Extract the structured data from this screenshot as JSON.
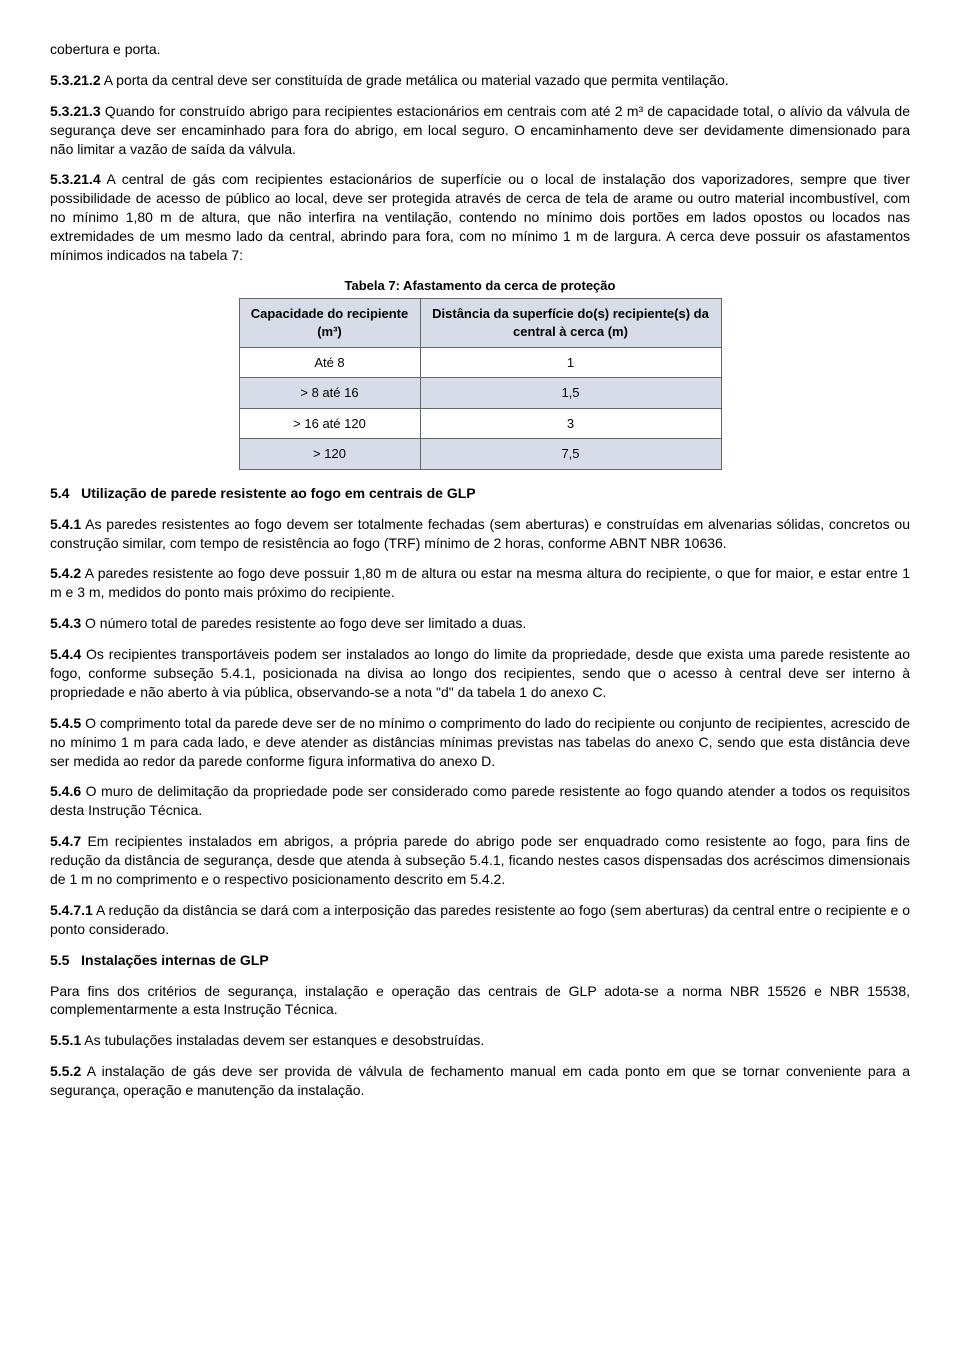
{
  "p_intro": "cobertura e porta.",
  "p_53212": {
    "num": "5.3.21.2",
    "text": " A porta da central deve ser constituída de grade metálica ou material vazado que permita ventilação."
  },
  "p_53213": {
    "num": "5.3.21.3",
    "text": " Quando for construído abrigo para recipientes estacionários em centrais com até 2 m³ de capacidade total, o alívio da válvula de segurança deve ser encaminhado para fora do abrigo, em local seguro. O encaminhamento deve ser devidamente dimensionado para não limitar a vazão de saída da válvula."
  },
  "p_53214": {
    "num": "5.3.21.4",
    "text": " A central de gás com recipientes estacionários de superfície ou o local de instalação dos vaporizadores, sempre que tiver possibilidade de acesso de público ao local, deve ser protegida através de cerca de tela de arame ou outro material incombustível, com no mínimo 1,80 m de altura, que não interfira na ventilação, contendo no mínimo dois portões em lados opostos ou locados nas extremidades de um mesmo lado da central, abrindo para fora, com no mínimo 1 m de largura. A cerca deve possuir os afastamentos mínimos indicados na tabela 7:"
  },
  "table7": {
    "caption": "Tabela 7: Afastamento da cerca de proteção",
    "headers": [
      "Capacidade do recipiente (m³)",
      "Distância da superfície do(s) recipiente(s) da central à cerca (m)"
    ],
    "rows": [
      [
        "Até 8",
        "1"
      ],
      [
        "> 8 até 16",
        "1,5"
      ],
      [
        "> 16 até 120",
        "3"
      ],
      [
        "> 120",
        "7,5"
      ]
    ]
  },
  "sec54": {
    "num": "5.4",
    "title": "Utilização de parede resistente ao fogo em centrais de GLP"
  },
  "p_541": {
    "num": "5.4.1",
    "text": " As paredes resistentes ao fogo devem ser totalmente fechadas (sem aberturas) e construídas em alvenarias sólidas, concretos ou construção similar, com tempo de resistência ao fogo (TRF) mínimo de 2 horas, conforme ABNT NBR 10636."
  },
  "p_542": {
    "num": "5.4.2",
    "text": " A paredes resistente ao fogo deve possuir 1,80 m de altura ou estar na mesma altura do recipiente, o que for maior, e estar entre 1 m e 3 m, medidos do ponto mais próximo do recipiente."
  },
  "p_543": {
    "num": "5.4.3",
    "text": " O número total de paredes resistente ao fogo deve ser limitado a duas."
  },
  "p_544": {
    "num": "5.4.4",
    "text": " Os recipientes transportáveis podem ser instalados ao longo do limite da propriedade, desde que exista uma parede resistente ao fogo, conforme subseção 5.4.1, posicionada na divisa ao longo dos recipientes, sendo que o acesso à central deve ser interno à propriedade e não aberto à via pública, observando-se a nota \"d\" da tabela 1 do anexo C."
  },
  "p_545": {
    "num": "5.4.5",
    "text": " O comprimento total da parede deve ser de no mínimo o comprimento do lado do recipiente ou conjunto de recipientes, acrescido de no mínimo 1 m para cada lado, e deve atender as distâncias mínimas previstas nas tabelas do anexo C, sendo que esta distância deve ser medida ao redor da parede conforme figura informativa do anexo D."
  },
  "p_546": {
    "num": "5.4.6",
    "text": " O muro de delimitação da propriedade pode ser considerado como parede resistente ao fogo quando atender a todos os requisitos desta Instrução Técnica."
  },
  "p_547": {
    "num": "5.4.7",
    "text": " Em recipientes instalados em abrigos, a própria parede do abrigo pode ser enquadrado como resistente ao fogo, para fins de redução da distância de segurança, desde que atenda à subseção 5.4.1, ficando nestes casos dispensadas dos acréscimos dimensionais de 1 m no comprimento e o respectivo posicionamento descrito em 5.4.2."
  },
  "p_5471": {
    "num": "5.4.7.1",
    "text": "   A redução da distância se dará com a interposição das paredes resistente ao fogo (sem aberturas) da central entre o recipiente e o ponto considerado."
  },
  "sec55": {
    "num": "5.5",
    "title": "Instalações internas de GLP"
  },
  "p_55intro": "Para fins dos critérios de segurança, instalação e operação das centrais de GLP adota-se a norma NBR 15526 e NBR 15538, complementarmente a esta Instrução Técnica.",
  "p_551": {
    "num": "5.5.1",
    "text": "    As tubulações instaladas devem ser estanques e desobstruídas."
  },
  "p_552": {
    "num": "5.5.2",
    "text": "  A instalação de gás deve ser provida de válvula de fechamento manual em cada ponto em que se tornar conveniente para a segurança, operação e manutenção da instalação."
  }
}
